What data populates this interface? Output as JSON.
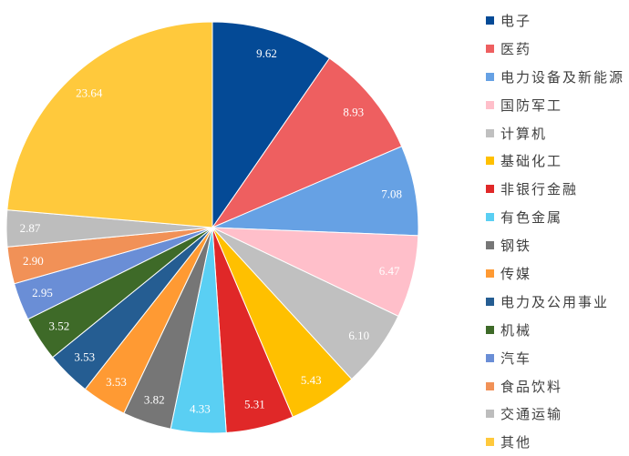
{
  "chart_data": {
    "type": "pie",
    "title": "",
    "legend_position": "right",
    "start_angle": "top, clockwise",
    "slices": [
      {
        "name": "电子",
        "value": 9.62,
        "color": "#044A96"
      },
      {
        "name": "医药",
        "value": 8.93,
        "color": "#EE5F60"
      },
      {
        "name": "电力设备及新能源",
        "value": 7.08,
        "color": "#66A1E4"
      },
      {
        "name": "国防军工",
        "value": 6.47,
        "color": "#FFBFCA"
      },
      {
        "name": "计算机",
        "value": 6.1,
        "color": "#C0C0C0"
      },
      {
        "name": "基础化工",
        "value": 5.43,
        "color": "#FFC000"
      },
      {
        "name": "非银行金融",
        "value": 5.31,
        "color": "#E02828"
      },
      {
        "name": "有色金属",
        "value": 4.33,
        "color": "#5ACFF3"
      },
      {
        "name": "钢铁",
        "value": 3.82,
        "color": "#767676"
      },
      {
        "name": "传媒",
        "value": 3.53,
        "color": "#FF9A33"
      },
      {
        "name": "电力及公用事业",
        "value": 3.53,
        "color": "#255D92"
      },
      {
        "name": "机械",
        "value": 3.52,
        "color": "#3E6A28"
      },
      {
        "name": "汽车",
        "value": 2.95,
        "color": "#6A8ED6"
      },
      {
        "name": "食品饮料",
        "value": 2.9,
        "color": "#F19157"
      },
      {
        "name": "交通运输",
        "value": 2.87,
        "color": "#BDBDBD"
      },
      {
        "name": "其他",
        "value": 23.64,
        "color": "#FFC93C"
      }
    ]
  }
}
